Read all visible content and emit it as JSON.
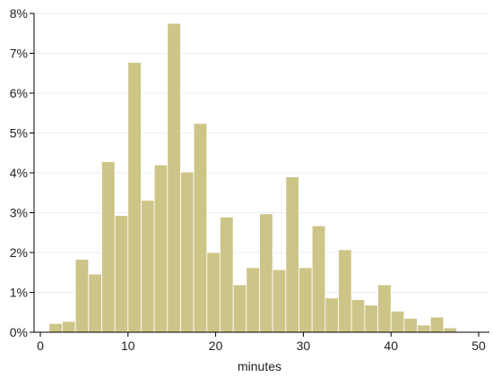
{
  "chart_data": {
    "type": "bar",
    "xlabel": "minutes",
    "ylabel": "",
    "xlim": [
      0,
      50
    ],
    "ylim": [
      0,
      8
    ],
    "x_ticks": [
      0,
      10,
      20,
      30,
      40,
      50
    ],
    "x_tick_labels": [
      "0",
      "10",
      "20",
      "30",
      "40",
      "50"
    ],
    "y_ticks": [
      0,
      1,
      2,
      3,
      4,
      5,
      6,
      7,
      8
    ],
    "y_tick_labels": [
      "0%",
      "1%",
      "2%",
      "3%",
      "4%",
      "5%",
      "6%",
      "7%",
      "8%"
    ],
    "grid": "horizontal",
    "bar_color": "#cdc587",
    "bar_edge_color": "#ffffff",
    "bin_width": 1.5,
    "bins": [
      {
        "start": 1.0,
        "value": 0.22
      },
      {
        "start": 2.5,
        "value": 0.27
      },
      {
        "start": 4.0,
        "value": 1.83
      },
      {
        "start": 5.5,
        "value": 1.46
      },
      {
        "start": 7.0,
        "value": 4.28
      },
      {
        "start": 8.5,
        "value": 2.93
      },
      {
        "start": 10.0,
        "value": 6.77
      },
      {
        "start": 11.5,
        "value": 3.31
      },
      {
        "start": 13.0,
        "value": 4.2
      },
      {
        "start": 14.5,
        "value": 7.75
      },
      {
        "start": 16.0,
        "value": 4.02
      },
      {
        "start": 17.5,
        "value": 5.24
      },
      {
        "start": 19.0,
        "value": 2.0
      },
      {
        "start": 20.5,
        "value": 2.89
      },
      {
        "start": 22.0,
        "value": 1.19
      },
      {
        "start": 23.5,
        "value": 1.62
      },
      {
        "start": 25.0,
        "value": 2.97
      },
      {
        "start": 26.5,
        "value": 1.57
      },
      {
        "start": 28.0,
        "value": 3.9
      },
      {
        "start": 29.5,
        "value": 1.62
      },
      {
        "start": 31.0,
        "value": 2.67
      },
      {
        "start": 32.5,
        "value": 0.86
      },
      {
        "start": 34.0,
        "value": 2.07
      },
      {
        "start": 35.5,
        "value": 0.82
      },
      {
        "start": 37.0,
        "value": 0.68
      },
      {
        "start": 38.5,
        "value": 1.19
      },
      {
        "start": 40.0,
        "value": 0.53
      },
      {
        "start": 41.5,
        "value": 0.35
      },
      {
        "start": 43.0,
        "value": 0.18
      },
      {
        "start": 44.5,
        "value": 0.38
      },
      {
        "start": 46.0,
        "value": 0.11
      }
    ]
  }
}
